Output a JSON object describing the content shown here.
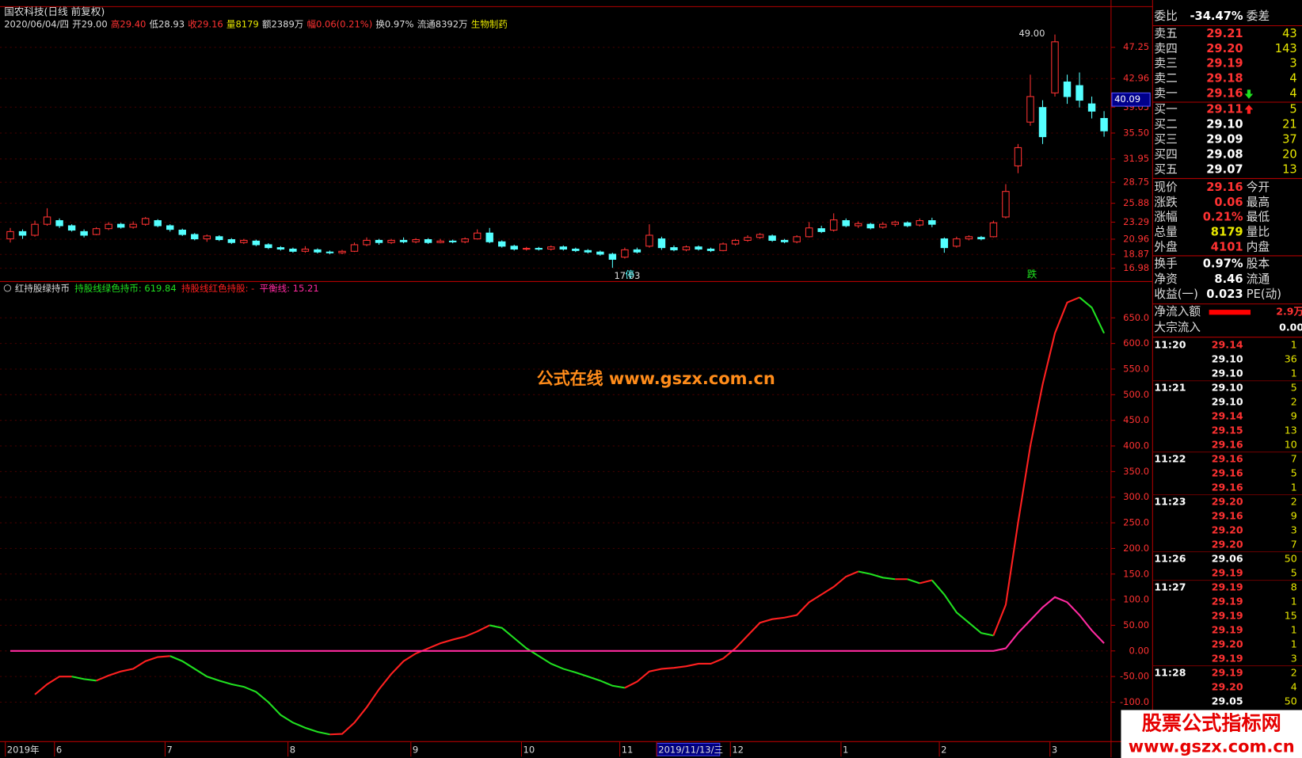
{
  "chart_data": [
    {
      "type": "candlestick",
      "title": "国农科技(日线 前复权)",
      "info": [
        {
          "text": "2020/06/04/四",
          "color": "#dddddd"
        },
        {
          "text": "开29.00",
          "color": "#dddddd"
        },
        {
          "text": "高29.40",
          "color": "#ff3232"
        },
        {
          "text": "低28.93",
          "color": "#dddddd"
        },
        {
          "text": "收29.16",
          "color": "#ff3232"
        },
        {
          "text": "量8179",
          "color": "#e8e800"
        },
        {
          "text": "额2389万",
          "color": "#dddddd"
        },
        {
          "text": "幅0.06(0.21%)",
          "color": "#ff3232"
        },
        {
          "text": "换0.97%",
          "color": "#dddddd"
        },
        {
          "text": "流通8392万",
          "color": "#dddddd"
        },
        {
          "text": "生物制药",
          "color": "#e8e800"
        }
      ],
      "categories": [
        "2019年",
        null,
        null,
        null,
        "6",
        null,
        null,
        null,
        null,
        null,
        null,
        null,
        null,
        "7",
        null,
        null,
        null,
        null,
        null,
        null,
        null,
        null,
        null,
        "8",
        null,
        null,
        null,
        null,
        null,
        null,
        null,
        null,
        null,
        "9",
        null,
        null,
        null,
        null,
        null,
        null,
        null,
        null,
        "10",
        null,
        null,
        null,
        null,
        null,
        null,
        null,
        "11",
        null,
        null,
        "2019/11/13/三",
        null,
        null,
        null,
        null,
        null,
        "12",
        null,
        null,
        null,
        null,
        null,
        null,
        null,
        null,
        "1",
        null,
        null,
        null,
        null,
        null,
        null,
        null,
        "2",
        null,
        null,
        null,
        null,
        null,
        null,
        null,
        null,
        "3",
        null,
        null,
        null,
        null
      ],
      "candles": [
        [
          21,
          22,
          22.5,
          20.5
        ],
        [
          22,
          21.5,
          22.3,
          21
        ],
        [
          21.5,
          23,
          23.5,
          21.3
        ],
        [
          23,
          24,
          25.2,
          22.8
        ],
        [
          23.5,
          22.8,
          23.8,
          22.5
        ],
        [
          22.8,
          22.2,
          23,
          22
        ],
        [
          22,
          21.5,
          22.3,
          21.2
        ],
        [
          21.6,
          22.4,
          22.6,
          21.5
        ],
        [
          22.4,
          23,
          23.3,
          22.2
        ],
        [
          23,
          22.6,
          23.2,
          22.4
        ],
        [
          22.6,
          23,
          23.4,
          22.4
        ],
        [
          23,
          23.8,
          24,
          22.8
        ],
        [
          23.5,
          22.8,
          23.7,
          22.6
        ],
        [
          22.8,
          22.3,
          23,
          22
        ],
        [
          22.2,
          21.6,
          22.4,
          21.4
        ],
        [
          21.6,
          21,
          21.8,
          20.8
        ],
        [
          21,
          21.4,
          21.6,
          20.6
        ],
        [
          21.3,
          20.9,
          21.5,
          20.7
        ],
        [
          20.9,
          20.5,
          21.1,
          20.3
        ],
        [
          20.5,
          20.8,
          21,
          20.3
        ],
        [
          20.7,
          20.2,
          20.9,
          20
        ],
        [
          20.2,
          19.8,
          20.4,
          19.6
        ],
        [
          19.8,
          19.6,
          20,
          19.4
        ],
        [
          19.6,
          19.3,
          19.8,
          19.1
        ],
        [
          19.3,
          19.6,
          20,
          19.1
        ],
        [
          19.5,
          19.2,
          19.7,
          19
        ],
        [
          19.2,
          19.1,
          19.4,
          18.9
        ],
        [
          19.1,
          19.3,
          19.5,
          18.9
        ],
        [
          19.3,
          20.2,
          20.5,
          19.2
        ],
        [
          20.2,
          20.8,
          21.2,
          20
        ],
        [
          20.8,
          20.5,
          21,
          20.2
        ],
        [
          20.5,
          20.8,
          21,
          20.3
        ],
        [
          20.8,
          20.6,
          21.2,
          20.4
        ],
        [
          20.6,
          20.9,
          21.1,
          20.4
        ],
        [
          20.9,
          20.5,
          21.1,
          20.3
        ],
        [
          20.5,
          20.7,
          21,
          20.4
        ],
        [
          20.7,
          20.6,
          20.9,
          20.4
        ],
        [
          20.6,
          21,
          21.2,
          20.4
        ],
        [
          21,
          21.8,
          22.3,
          20.9
        ],
        [
          21.8,
          20.6,
          22.5,
          20.4
        ],
        [
          20.6,
          20,
          20.8,
          19.8
        ],
        [
          20,
          19.6,
          20.2,
          19.4
        ],
        [
          19.6,
          19.7,
          19.9,
          19.4
        ],
        [
          19.7,
          19.6,
          19.9,
          19.4
        ],
        [
          19.6,
          19.9,
          20.1,
          19.4
        ],
        [
          19.9,
          19.6,
          20.1,
          19.4
        ],
        [
          19.6,
          19.4,
          19.8,
          19.2
        ],
        [
          19.4,
          19.2,
          19.6,
          19
        ],
        [
          19.2,
          18.9,
          19.4,
          18.7
        ],
        [
          18.9,
          18.2,
          19.1,
          17.03
        ],
        [
          18.5,
          19.5,
          19.8,
          18.3
        ],
        [
          19.5,
          19.2,
          19.8,
          19
        ],
        [
          20,
          21.5,
          23,
          19.8
        ],
        [
          21,
          19.8,
          21.3,
          19.5
        ],
        [
          19.8,
          19.5,
          20.1,
          19.3
        ],
        [
          19.5,
          19.9,
          20.1,
          19.3
        ],
        [
          19.9,
          19.6,
          20.1,
          19.4
        ],
        [
          19.6,
          19.4,
          19.8,
          19.2
        ],
        [
          19.4,
          20.3,
          20.5,
          19.3
        ],
        [
          20.3,
          20.8,
          21,
          20.1
        ],
        [
          20.8,
          21.2,
          21.5,
          20.6
        ],
        [
          21.2,
          21.6,
          21.8,
          21
        ],
        [
          21.4,
          20.8,
          21.6,
          20.6
        ],
        [
          20.8,
          20.6,
          21,
          20.4
        ],
        [
          20.6,
          21.3,
          21.5,
          20.4
        ],
        [
          21.3,
          22.5,
          23.3,
          21.2
        ],
        [
          22.4,
          22,
          22.8,
          21.8
        ],
        [
          22.2,
          23.6,
          24.5,
          22
        ],
        [
          23.5,
          22.8,
          23.8,
          22.6
        ],
        [
          22.8,
          23.1,
          23.4,
          22.5
        ],
        [
          23,
          22.5,
          23.2,
          22.3
        ],
        [
          22.6,
          23,
          23.3,
          22.4
        ],
        [
          23,
          23.3,
          23.5,
          22.7
        ],
        [
          23.2,
          22.8,
          23.4,
          22.6
        ],
        [
          22.9,
          23.5,
          23.8,
          22.7
        ],
        [
          23.5,
          23,
          23.9,
          22.6
        ],
        [
          21,
          19.8,
          21.2,
          19.1
        ],
        [
          20,
          21,
          21.3,
          19.8
        ],
        [
          21,
          21.3,
          21.5,
          20.8
        ],
        [
          21.2,
          21,
          21.4,
          20.8
        ],
        [
          21.3,
          23.2,
          23.5,
          21.2
        ],
        [
          24,
          27.5,
          28.5,
          23.8
        ],
        [
          31,
          33.5,
          34,
          30
        ],
        [
          37,
          40.5,
          43.5,
          36.5
        ],
        [
          39,
          35,
          40,
          34
        ],
        [
          41,
          48,
          49,
          40.5
        ],
        [
          42.5,
          40.5,
          43.5,
          39.5
        ],
        [
          42,
          40,
          43.8,
          39
        ],
        [
          39.5,
          38.5,
          40.5,
          37.5
        ],
        [
          37.5,
          35.8,
          38.5,
          35
        ]
      ],
      "up_color": "#ff3232",
      "down_color": "#54ffff",
      "ylim": [
        15.27,
        52.82
      ],
      "yticks": [
        47.25,
        42.96,
        39.05,
        {
          "value": 35.5,
          "label": "35.50"
        },
        31.95,
        28.75,
        25.88,
        23.29,
        20.96,
        18.87,
        16.98
      ],
      "grid": true,
      "cursor_price": 40.09,
      "high_label": "49.00",
      "low_label": "17.03",
      "marker_stop": "停",
      "marker_fall": "跌"
    },
    {
      "type": "line",
      "title": "红持股绿持币",
      "legend": [
        {
          "text": "持股线绿色持币: 619.84",
          "color": "#20e020"
        },
        {
          "text": "持股线红色持股: -",
          "color": "#ff2020"
        },
        {
          "text": "平衡线: 15.21",
          "color": "#ff2aa0"
        }
      ],
      "series": [
        {
          "name": "持股线",
          "up_color": "#ff2020",
          "down_color": "#20e020",
          "values": [
            null,
            null,
            -85,
            -65,
            -50,
            -50,
            -55,
            -58,
            -48,
            -40,
            -35,
            -20,
            -12,
            -10,
            -20,
            -35,
            -50,
            -58,
            -65,
            -70,
            -80,
            -100,
            -125,
            -140,
            -150,
            -158,
            -163,
            -162,
            -140,
            -110,
            -75,
            -45,
            -20,
            -5,
            5,
            15,
            22,
            28,
            38,
            50,
            45,
            25,
            5,
            -10,
            -25,
            -35,
            -42,
            -50,
            -58,
            -68,
            -72,
            -60,
            -40,
            -35,
            -33,
            -30,
            -25,
            -25,
            -15,
            5,
            30,
            55,
            62,
            65,
            70,
            95,
            110,
            125,
            145,
            155,
            150,
            143,
            140,
            140,
            132,
            138,
            110,
            75,
            55,
            35,
            30,
            90,
            250,
            400,
            520,
            620,
            680,
            690,
            670,
            620
          ]
        },
        {
          "name": "平衡线",
          "color": "#ff2aa0",
          "values": [
            0,
            0,
            0,
            0,
            0,
            0,
            0,
            0,
            0,
            0,
            0,
            0,
            0,
            0,
            0,
            0,
            0,
            0,
            0,
            0,
            0,
            0,
            0,
            0,
            0,
            0,
            0,
            0,
            0,
            0,
            0,
            0,
            0,
            0,
            0,
            0,
            0,
            0,
            0,
            0,
            0,
            0,
            0,
            0,
            0,
            0,
            0,
            0,
            0,
            0,
            0,
            0,
            0,
            0,
            0,
            0,
            0,
            0,
            0,
            0,
            0,
            0,
            0,
            0,
            0,
            0,
            0,
            0,
            0,
            0,
            0,
            0,
            0,
            0,
            0,
            0,
            0,
            0,
            0,
            0,
            0,
            5,
            35,
            60,
            85,
            105,
            95,
            70,
            40,
            15
          ]
        }
      ],
      "ylim": [
        -177,
        716
      ],
      "yticks": [
        {
          "value": 650,
          "label": "650.0"
        },
        {
          "value": 600,
          "label": "600.0"
        },
        {
          "value": 550,
          "label": "550.0"
        },
        {
          "value": 500,
          "label": "500.0"
        },
        {
          "value": 450,
          "label": "450.0"
        },
        {
          "value": 400,
          "label": "400.0"
        },
        {
          "value": 350,
          "label": "350.0"
        },
        {
          "value": 300,
          "label": "300.0"
        },
        {
          "value": 250,
          "label": "250.0"
        },
        {
          "value": 200,
          "label": "200.0"
        },
        {
          "value": 150,
          "label": "150.0"
        },
        {
          "value": 100,
          "label": "100.0"
        },
        {
          "value": 50,
          "label": "50.00"
        },
        {
          "value": 0,
          "label": "0.00"
        },
        {
          "value": -50,
          "label": "-50.00"
        },
        {
          "value": -100,
          "label": "-100.0"
        }
      ],
      "grid": true
    }
  ],
  "order_book": {
    "header": [
      "委比",
      "-34.47%",
      "委差"
    ],
    "asks": [
      {
        "label": "卖五",
        "price": "29.21",
        "vol": "43",
        "color": "#ff3232"
      },
      {
        "label": "卖四",
        "price": "29.20",
        "vol": "143",
        "color": "#ff3232"
      },
      {
        "label": "卖三",
        "price": "29.19",
        "vol": "3",
        "color": "#ff3232"
      },
      {
        "label": "卖二",
        "price": "29.18",
        "vol": "4",
        "color": "#ff3232"
      },
      {
        "label": "卖一",
        "price": "29.16",
        "vol": "4",
        "color": "#ff3232"
      }
    ],
    "bids": [
      {
        "label": "买一",
        "price": "29.11",
        "vol": "5",
        "color": "#ff3232"
      },
      {
        "label": "买二",
        "price": "29.10",
        "vol": "21",
        "color": "#ffffff"
      },
      {
        "label": "买三",
        "price": "29.09",
        "vol": "37",
        "color": "#ffffff"
      },
      {
        "label": "买四",
        "price": "29.08",
        "vol": "20",
        "color": "#ffffff"
      },
      {
        "label": "买五",
        "price": "29.07",
        "vol": "13",
        "color": "#ffffff"
      }
    ]
  },
  "quote": [
    {
      "label": "现价",
      "value": "29.16",
      "label2": "今开",
      "color": "#ff3232"
    },
    {
      "label": "涨跌",
      "value": "0.06",
      "label2": "最高",
      "color": "#ff3232"
    },
    {
      "label": "涨幅",
      "value": "0.21%",
      "label2": "最低",
      "color": "#ff3232"
    },
    {
      "label": "总量",
      "value": "8179",
      "label2": "量比",
      "color": "#e8e800"
    },
    {
      "label": "外盘",
      "value": "4101",
      "label2": "内盘",
      "color": "#ff3232"
    },
    {
      "label": "换手",
      "value": "0.97%",
      "label2": "股本",
      "color": "#ffffff"
    },
    {
      "label": "净资",
      "value": "8.46",
      "label2": "流通",
      "color": "#ffffff"
    },
    {
      "label": "收益(一)",
      "value": "0.023",
      "label2": "PE(动)",
      "color": "#ffffff"
    }
  ],
  "flow": [
    {
      "label": "净流入额",
      "value": "2.9万",
      "color": "#ff3232"
    },
    {
      "label": "大宗流入",
      "value": "0.00",
      "color": "#ffffff"
    }
  ],
  "ticks": [
    [
      "11:20",
      "29.14",
      "1",
      "#ff3232"
    ],
    [
      null,
      "29.10",
      "36",
      "#ffffff"
    ],
    [
      null,
      "29.10",
      "1",
      "#ffffff"
    ],
    [
      "11:21",
      "29.10",
      "5",
      "#ffffff"
    ],
    [
      null,
      "29.10",
      "2",
      "#ffffff"
    ],
    [
      null,
      "29.14",
      "9",
      "#ff3232"
    ],
    [
      null,
      "29.15",
      "13",
      "#ff3232"
    ],
    [
      null,
      "29.16",
      "10",
      "#ff3232"
    ],
    [
      "11:22",
      "29.16",
      "7",
      "#ff3232"
    ],
    [
      null,
      "29.16",
      "5",
      "#ff3232"
    ],
    [
      null,
      "29.16",
      "1",
      "#ff3232"
    ],
    [
      "11:23",
      "29.20",
      "2",
      "#ff3232"
    ],
    [
      null,
      "29.16",
      "9",
      "#ff3232"
    ],
    [
      null,
      "29.20",
      "3",
      "#ff3232"
    ],
    [
      null,
      "29.20",
      "7",
      "#ff3232"
    ],
    [
      "11:26",
      "29.06",
      "50",
      "#ffffff"
    ],
    [
      null,
      "29.19",
      "5",
      "#ff3232"
    ],
    [
      "11:27",
      "29.19",
      "8",
      "#ff3232"
    ],
    [
      null,
      "29.19",
      "1",
      "#ff3232"
    ],
    [
      null,
      "29.19",
      "15",
      "#ff3232"
    ],
    [
      null,
      "29.19",
      "1",
      "#ff3232"
    ],
    [
      null,
      "29.20",
      "1",
      "#ff3232"
    ],
    [
      null,
      "29.19",
      "3",
      "#ff3232"
    ],
    [
      "11:28",
      "29.19",
      "2",
      "#ff3232"
    ],
    [
      null,
      "29.20",
      "4",
      "#ff3232"
    ],
    [
      null,
      "29.05",
      "50",
      "#ffffff"
    ]
  ],
  "watermark": "公式在线  www.gszx.com.cn",
  "badge": {
    "title": "股票公式指标网",
    "url": "www.gszx.com.cn"
  }
}
